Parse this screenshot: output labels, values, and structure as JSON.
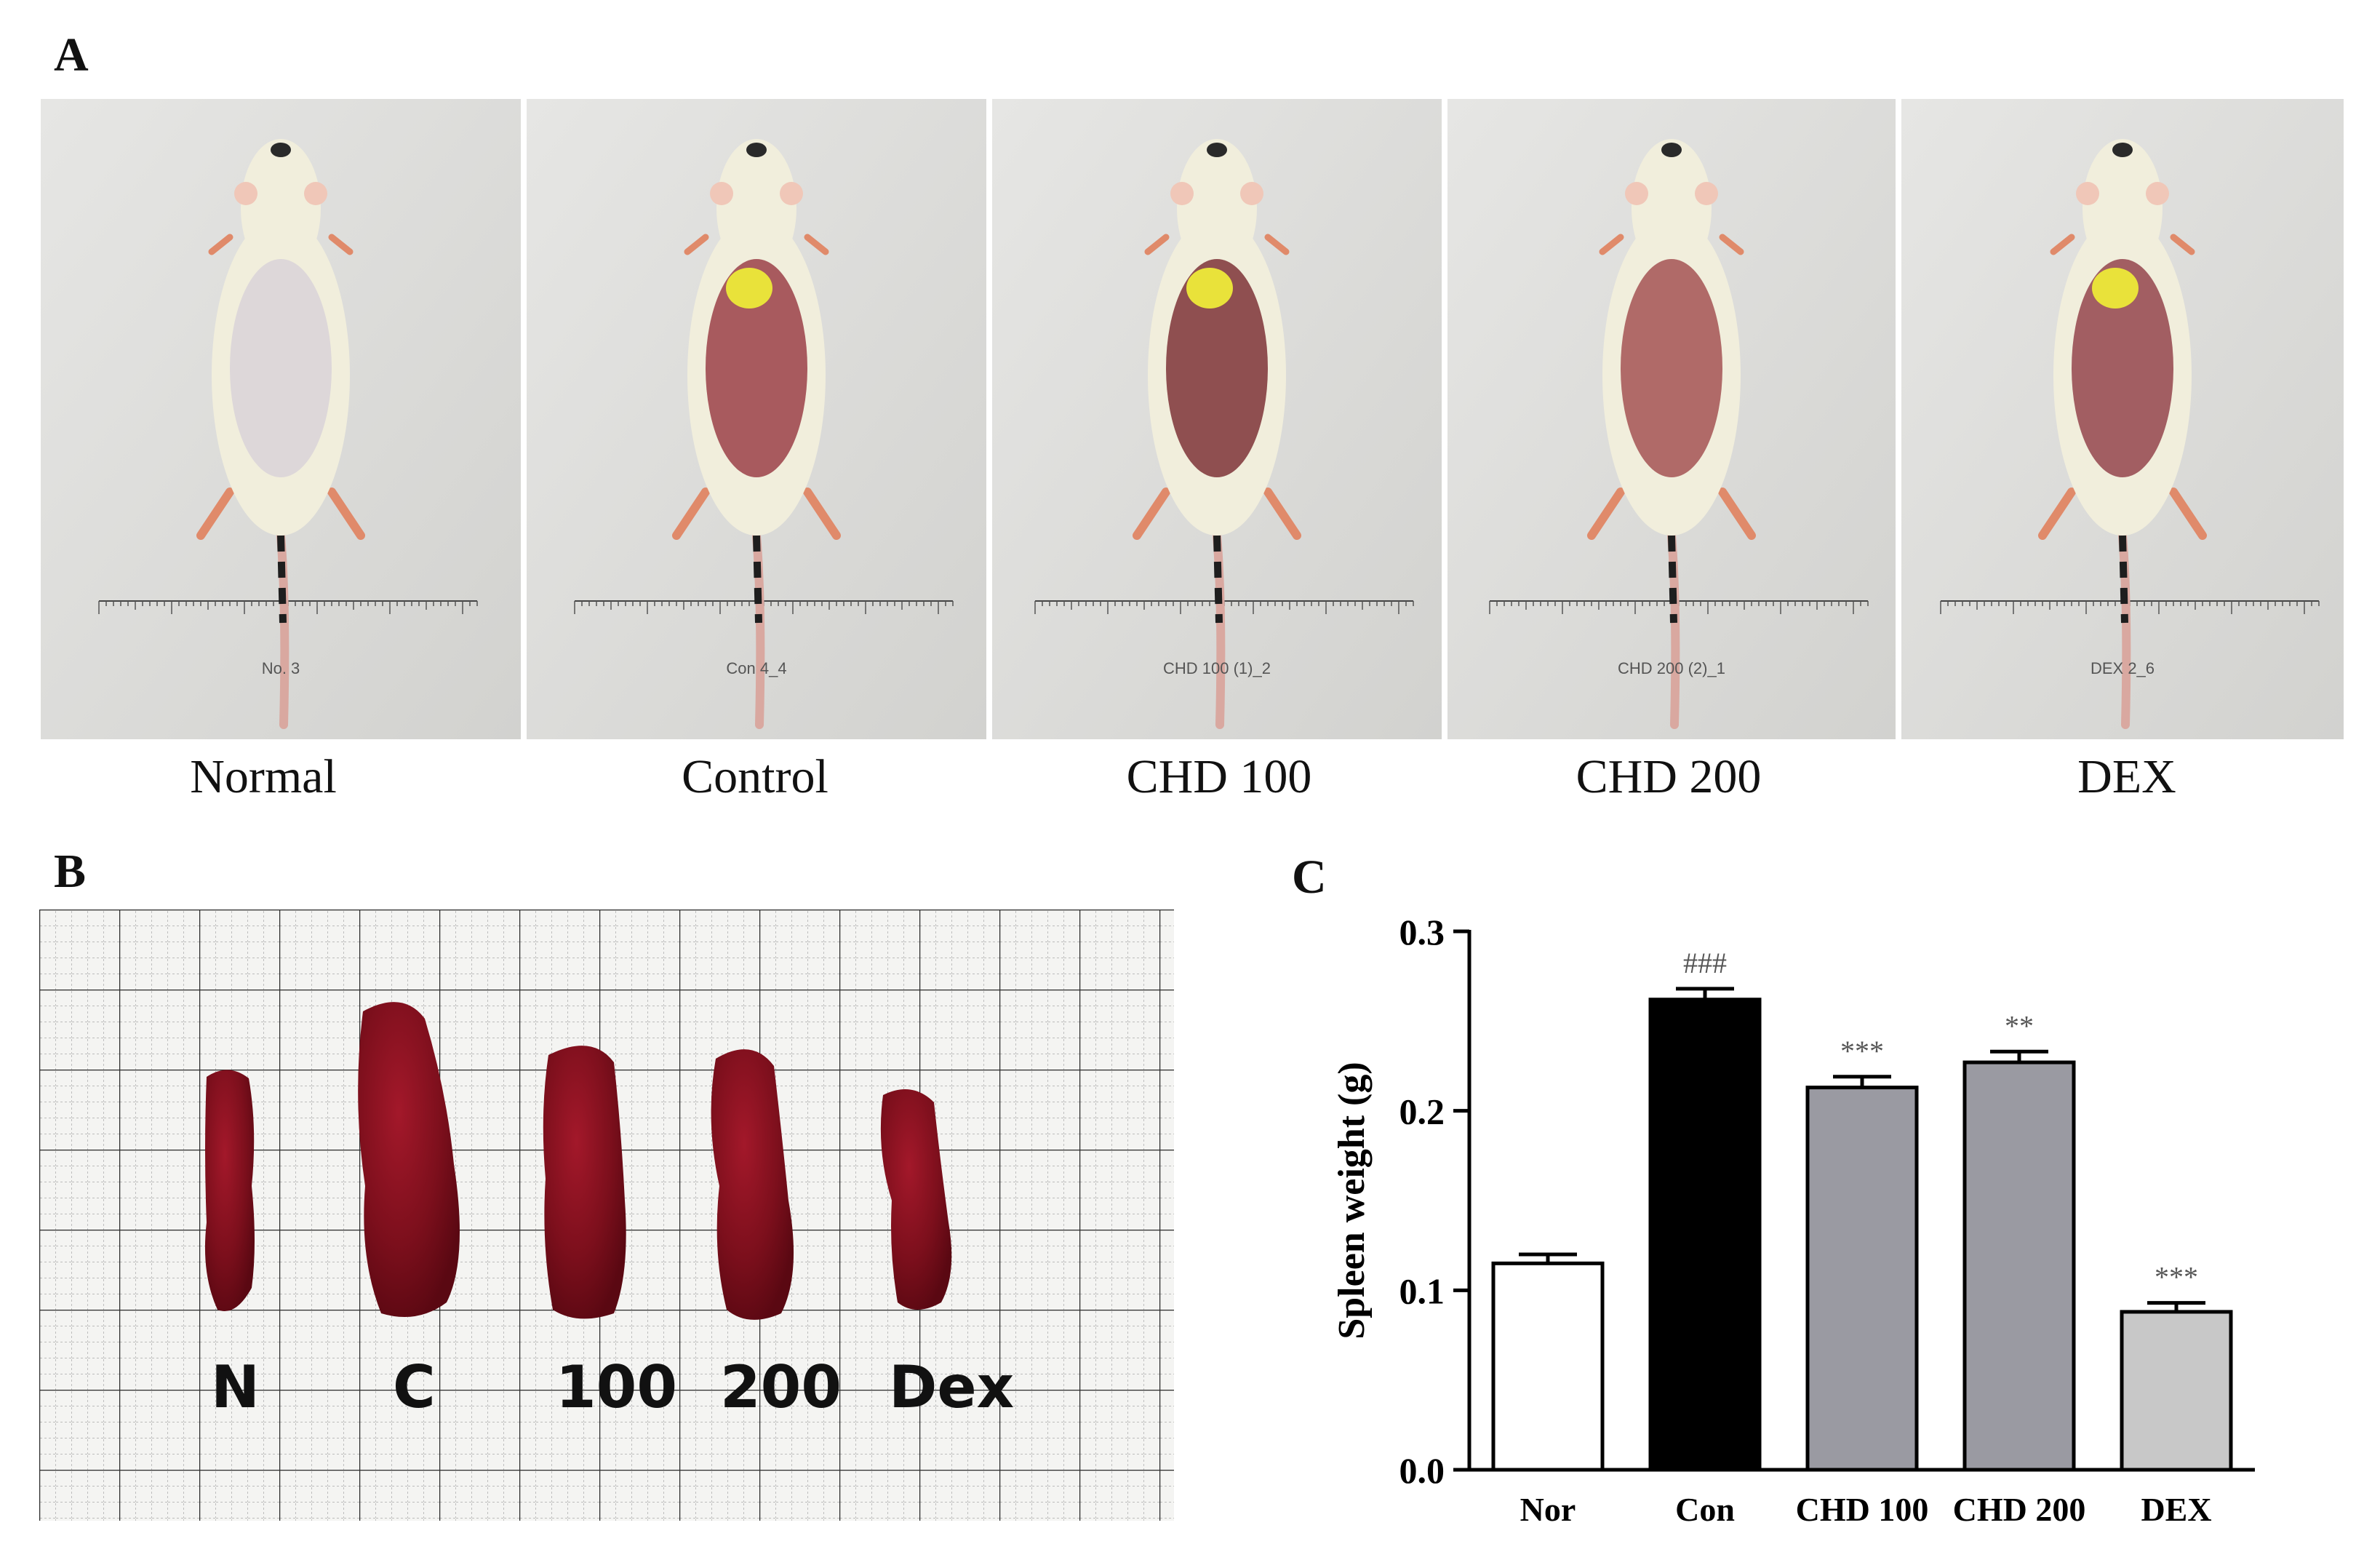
{
  "panels": {
    "a": "A",
    "b": "B",
    "c": "C"
  },
  "mouse_photos": [
    {
      "caption": "Normal",
      "tag": "No. 3"
    },
    {
      "caption": "Control",
      "tag": "Con 4_4"
    },
    {
      "caption": "CHD 100",
      "tag": "CHD 100 (1)_2"
    },
    {
      "caption": "CHD 200",
      "tag": "CHD 200 (2)_1"
    },
    {
      "caption": "DEX",
      "tag": "DEX 2_6"
    }
  ],
  "spleen_labels": [
    "N",
    "C",
    "100",
    "200",
    "Dex"
  ],
  "chart_data": {
    "type": "bar",
    "categories": [
      "Nor",
      "Con",
      "CHD 100",
      "CHD 200",
      "DEX"
    ],
    "values": [
      0.115,
      0.262,
      0.213,
      0.227,
      0.088
    ],
    "errors": [
      0.005,
      0.006,
      0.006,
      0.006,
      0.005
    ],
    "annotations": [
      "",
      "###",
      "***",
      "**",
      "***"
    ],
    "bar_colors": [
      "#ffffff",
      "#000000",
      "#9a9aa2",
      "#9a9aa2",
      "#c8c8c8"
    ],
    "ylabel": "Spleen weight (g)",
    "xlabel": "",
    "ylim": [
      0.0,
      0.3
    ],
    "yticks": [
      "0.0",
      "0.1",
      "0.2",
      "0.3"
    ]
  }
}
